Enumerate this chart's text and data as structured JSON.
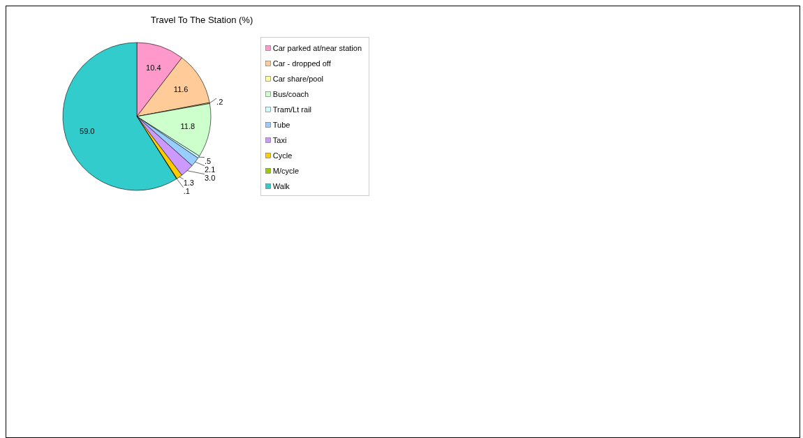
{
  "chart_data": {
    "type": "pie",
    "title": "Travel To The Station (%)",
    "categories": [
      "Car parked at/near station",
      "Car - dropped off",
      "Car share/pool",
      "Bus/coach",
      "Tram/Lt rail",
      "Tube",
      "Taxi",
      "Cycle",
      "M/cycle",
      "Walk"
    ],
    "values": [
      10.4,
      11.6,
      0.2,
      11.8,
      0.5,
      2.1,
      3.0,
      1.3,
      0.1,
      59.0
    ],
    "value_labels": [
      "10.4",
      "11.6",
      ".2",
      "11.8",
      ".5",
      "2.1",
      "3.0",
      "1.3",
      ".1",
      "59.0"
    ],
    "colors": [
      "#ff99cc",
      "#ffcc99",
      "#ffff99",
      "#ccffcc",
      "#ccffff",
      "#99ccff",
      "#cc99ff",
      "#ffcc00",
      "#99cc00",
      "#33cccc"
    ],
    "legend": "right"
  }
}
